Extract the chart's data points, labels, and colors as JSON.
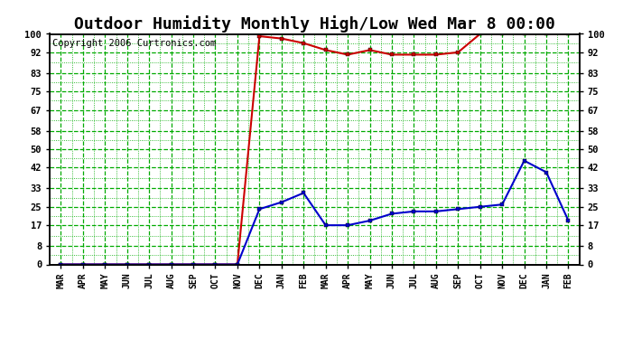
{
  "title": "Outdoor Humidity Monthly High/Low Wed Mar 8 00:00",
  "copyright": "Copyright 2006 Curtronics.com",
  "x_labels": [
    "MAR",
    "APR",
    "MAY",
    "JUN",
    "JUL",
    "AUG",
    "SEP",
    "OCT",
    "NOV",
    "DEC",
    "JAN",
    "FEB",
    "MAR",
    "APR",
    "MAY",
    "JUN",
    "JUL",
    "AUG",
    "SEP",
    "OCT",
    "NOV",
    "DEC",
    "JAN",
    "FEB"
  ],
  "high_values": [
    0,
    0,
    0,
    0,
    0,
    0,
    0,
    0,
    0,
    99,
    98,
    96,
    93,
    91,
    93,
    91,
    91,
    91,
    92,
    100,
    100,
    100,
    100,
    100
  ],
  "low_values": [
    0,
    0,
    0,
    0,
    0,
    0,
    0,
    0,
    0,
    24,
    27,
    31,
    17,
    17,
    19,
    22,
    23,
    23,
    24,
    25,
    26,
    45,
    40,
    19
  ],
  "ylim": [
    0,
    100
  ],
  "yticks": [
    0,
    8,
    17,
    25,
    33,
    42,
    50,
    58,
    67,
    75,
    83,
    92,
    100
  ],
  "high_color": "#cc0000",
  "low_color": "#0000cc",
  "bg_color": "#ffffff",
  "plot_bg_color": "#ffffff",
  "grid_color": "#00aa00",
  "minor_grid_color": "#00aa00",
  "title_fontsize": 13,
  "copyright_fontsize": 7.5
}
